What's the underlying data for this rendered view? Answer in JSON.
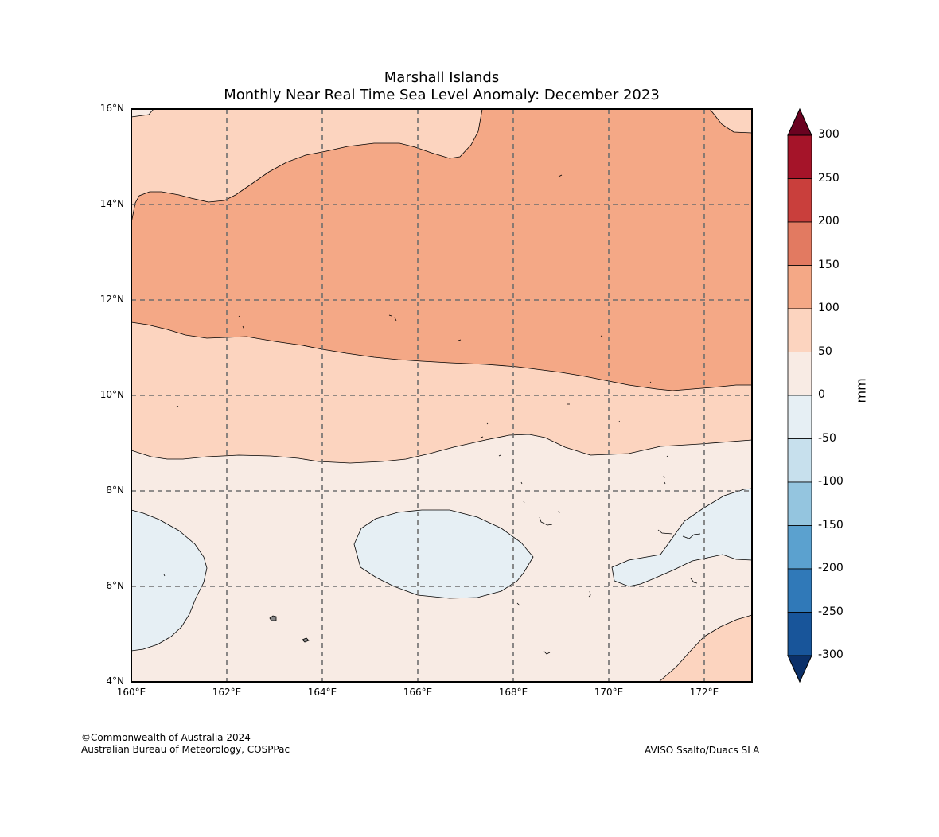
{
  "title": {
    "line1": "Marshall Islands",
    "line2": "Monthly Near Real Time Sea Level Anomaly: December 2023"
  },
  "map": {
    "lon_min": 160,
    "lon_max": 173,
    "lat_min": 4,
    "lat_max": 16,
    "lat_ticks": [
      {
        "value": 16,
        "label": "16°N"
      },
      {
        "value": 14,
        "label": "14°N"
      },
      {
        "value": 12,
        "label": "12°N"
      },
      {
        "value": 10,
        "label": "10°N"
      },
      {
        "value": 8,
        "label": "8°N"
      },
      {
        "value": 6,
        "label": "6°N"
      },
      {
        "value": 4,
        "label": "4°N"
      }
    ],
    "lon_ticks": [
      {
        "value": 160,
        "label": "160°E"
      },
      {
        "value": 162,
        "label": "162°E"
      },
      {
        "value": 164,
        "label": "164°E"
      },
      {
        "value": 166,
        "label": "166°E"
      },
      {
        "value": 168,
        "label": "168°E"
      },
      {
        "value": 170,
        "label": "170°E"
      },
      {
        "value": 172,
        "label": "172°E"
      }
    ],
    "band_colors": {
      "50_100": "#fcd4bf",
      "100_150": "#f4a886",
      "0_50": "#f8ebe4",
      "neg50_0": "#e6eff4"
    },
    "gridlines": "dashed"
  },
  "colorbar": {
    "units": "mm",
    "labels": [
      "300",
      "250",
      "200",
      "150",
      "100",
      "50",
      "0",
      "-50",
      "-100",
      "-150",
      "-200",
      "-250",
      "-300"
    ],
    "bins": [
      {
        "range": "250 to 300",
        "color": "#a51429"
      },
      {
        "range": "200 to 250",
        "color": "#c93f3c"
      },
      {
        "range": "150 to 200",
        "color": "#e27a61"
      },
      {
        "range": "100 to 150",
        "color": "#f4a886"
      },
      {
        "range": "50 to 100",
        "color": "#fcd4bf"
      },
      {
        "range": "0 to 50",
        "color": "#f8ebe4"
      },
      {
        "range": "-50 to 0",
        "color": "#e6eff4"
      },
      {
        "range": "-100 to -50",
        "color": "#c7e0ed"
      },
      {
        "range": "-150 to -100",
        "color": "#94c5df"
      },
      {
        "range": "-200 to -150",
        "color": "#5ba1cf"
      },
      {
        "range": "-250 to -200",
        "color": "#3079b8"
      },
      {
        "range": "-300 to -250",
        "color": "#18559a"
      }
    ],
    "over_color": "#6a0220",
    "under_color": "#0b3069"
  },
  "credits": {
    "copyright": "©Commonwealth of Australia 2024",
    "bureau": "Australian Bureau of Meteorology, COSPPac",
    "source": "AVISO Ssalto/Duacs SLA"
  }
}
